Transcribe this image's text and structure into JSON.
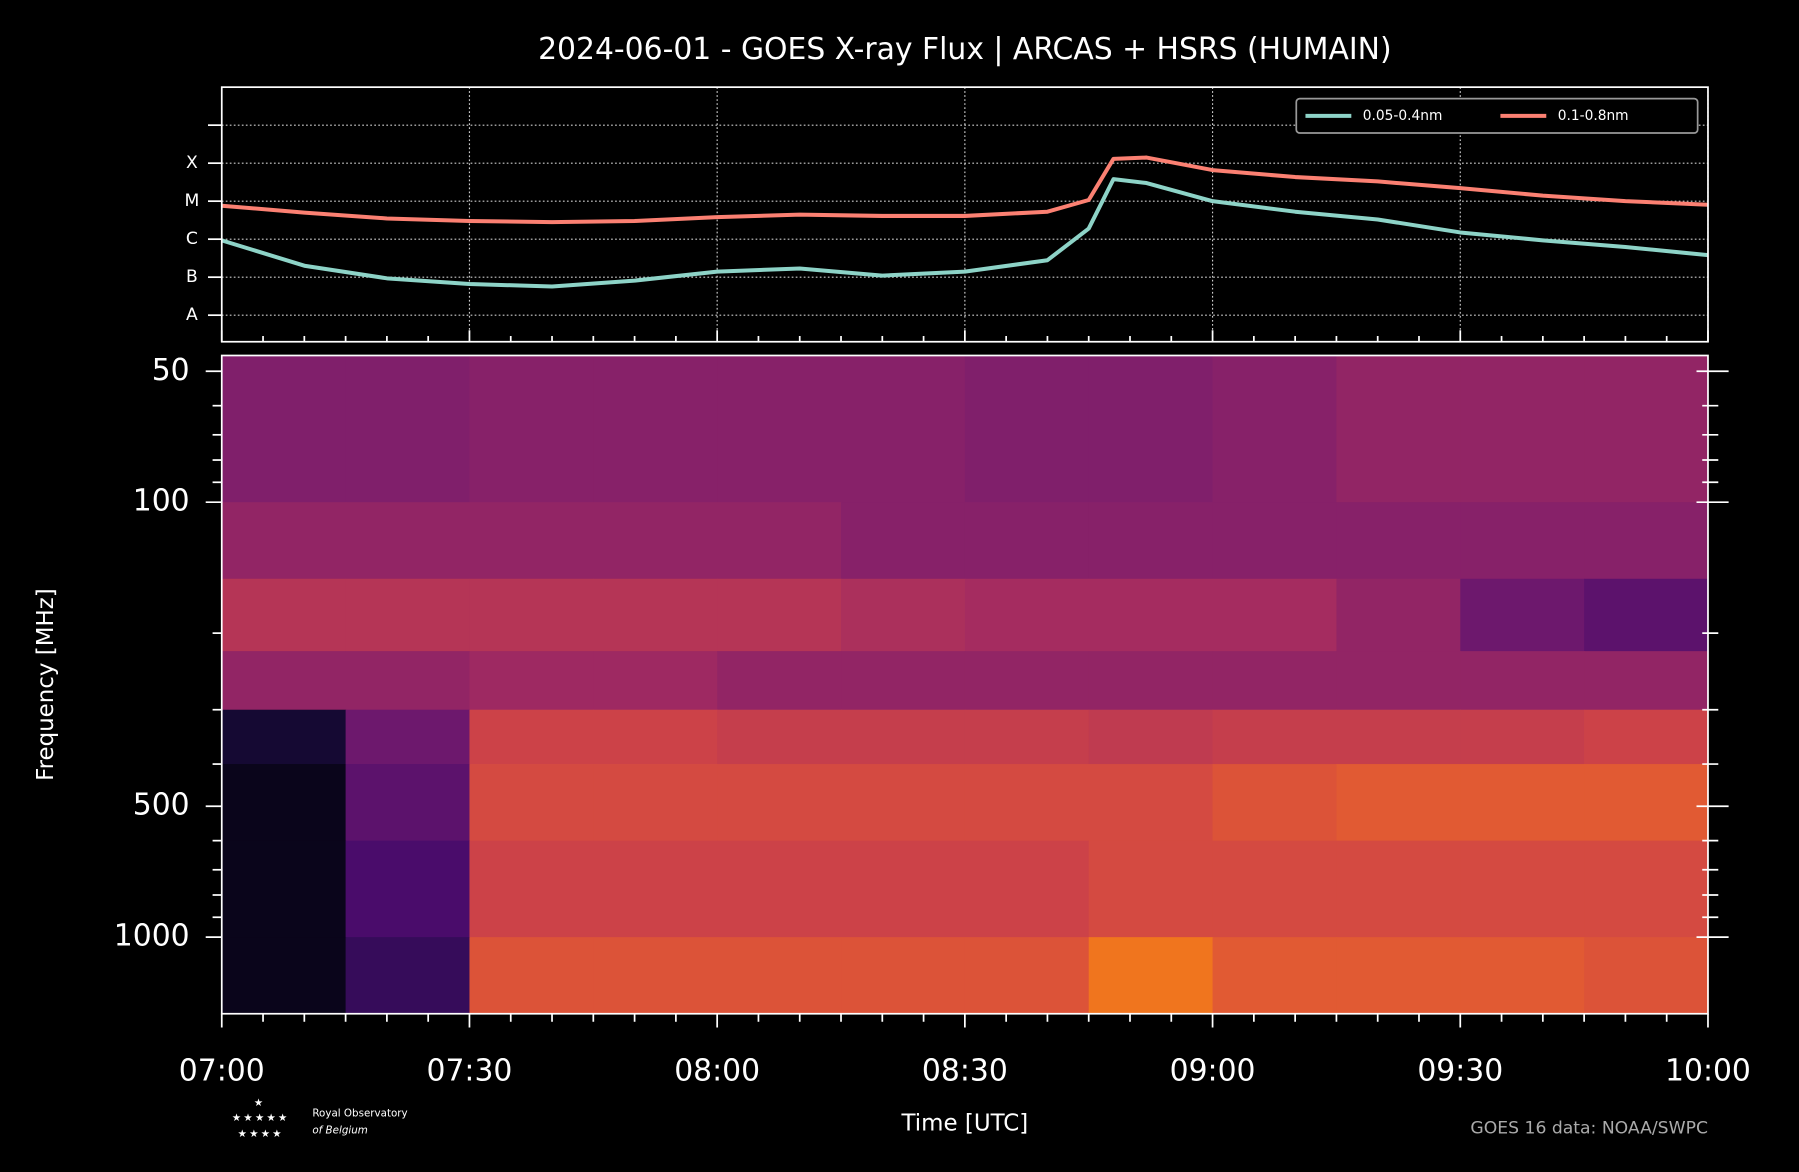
{
  "chart_data": [
    {
      "type": "line",
      "title": "2024-06-01 - GOES X-ray Flux | ARCAS + HSRS (HUMAIN)",
      "x": [
        "07:00",
        "07:10",
        "07:20",
        "07:30",
        "07:40",
        "07:50",
        "08:00",
        "08:10",
        "08:20",
        "08:30",
        "08:40",
        "08:45",
        "08:48",
        "08:52",
        "09:00",
        "09:10",
        "09:20",
        "09:30",
        "09:40",
        "09:50",
        "10:00"
      ],
      "series": [
        {
          "name": "0.05-0.4nm",
          "color": "#8dd3c7",
          "values": [
            9.3e-07,
            2e-07,
            9.3e-08,
            6.6e-08,
            5.7e-08,
            8.1e-08,
            1.4e-07,
            1.7e-07,
            1.1e-07,
            1.4e-07,
            2.8e-07,
            1.9e-06,
            3.8e-05,
            3e-05,
            1e-05,
            5.3e-06,
            3.3e-06,
            1.5e-06,
            9.3e-07,
            6.2e-07,
            3.8e-07
          ]
        },
        {
          "name": "0.1-0.8nm",
          "color": "#fb8072",
          "values": [
            7.6e-06,
            5e-06,
            3.5e-06,
            3e-06,
            2.8e-06,
            3e-06,
            3.8e-06,
            4.4e-06,
            4.1e-06,
            4.1e-06,
            5.3e-06,
            1.07e-05,
            0.00013,
            0.00014,
            6.6e-05,
            4.3e-05,
            3.3e-05,
            2.2e-05,
            1.4e-05,
            1e-05,
            8.1e-06
          ]
        }
      ],
      "xlim": [
        "07:00",
        "10:00"
      ],
      "xticks": [
        "07:00",
        "07:30",
        "08:00",
        "08:30",
        "09:00",
        "09:30",
        "10:00"
      ],
      "ylim": [
        2e-09,
        0.01
      ],
      "log_y": true,
      "yticks": [
        {
          "value": 1e-08,
          "label": "A"
        },
        {
          "value": 1e-07,
          "label": "B"
        },
        {
          "value": 1e-06,
          "label": "C"
        },
        {
          "value": 1e-05,
          "label": "M"
        },
        {
          "value": 0.0001,
          "label": "X"
        }
      ],
      "yticks_unlabeled": [
        0.001
      ],
      "grid": true,
      "legend": "upper right",
      "source": "GOES 16 data: NOAA/SWPC"
    },
    {
      "type": "heatmap",
      "xlabel": "Time [UTC]",
      "ylabel": "Frequency [MHz]",
      "xlim": [
        "07:00",
        "10:00"
      ],
      "xticks": [
        "07:00",
        "07:30",
        "08:00",
        "08:30",
        "09:00",
        "09:30",
        "10:00"
      ],
      "xticks_minor": [
        "07:05",
        "07:10",
        "07:15",
        "07:20",
        "07:25",
        "07:35",
        "07:40",
        "07:45",
        "07:50",
        "07:55",
        "08:05",
        "08:10",
        "08:15",
        "08:20",
        "08:25",
        "08:35",
        "08:40",
        "08:45",
        "08:50",
        "08:55",
        "09:05",
        "09:10",
        "09:15",
        "09:20",
        "09:25",
        "09:35",
        "09:40",
        "09:45",
        "09:50",
        "09:55"
      ],
      "ylim": [
        46,
        1500
      ],
      "log_y": true,
      "y_inverted": true,
      "yticks": [
        50,
        100,
        500,
        1000
      ],
      "yticks_minor": [
        60,
        70,
        80,
        90,
        200,
        300,
        400,
        600,
        700,
        800,
        900
      ],
      "colormap": "inferno",
      "x_edges": [
        "07:00",
        "07:15",
        "07:30",
        "07:45",
        "08:00",
        "08:15",
        "08:30",
        "08:45",
        "09:00",
        "09:15",
        "09:30",
        "09:45",
        "10:00"
      ],
      "y_edges": [
        46,
        100,
        150,
        220,
        300,
        400,
        600,
        1000,
        1500
      ],
      "values": [
        [
          0.4,
          0.4,
          0.42,
          0.42,
          0.42,
          0.42,
          0.4,
          0.4,
          0.42,
          0.45,
          0.45,
          0.45
        ],
        [
          0.45,
          0.45,
          0.45,
          0.45,
          0.45,
          0.42,
          0.42,
          0.42,
          0.42,
          0.42,
          0.42,
          0.42
        ],
        [
          0.55,
          0.55,
          0.55,
          0.55,
          0.55,
          0.52,
          0.5,
          0.5,
          0.5,
          0.45,
          0.35,
          0.3
        ],
        [
          0.45,
          0.45,
          0.48,
          0.48,
          0.45,
          0.45,
          0.45,
          0.45,
          0.45,
          0.45,
          0.45,
          0.45
        ],
        [
          0.1,
          0.35,
          0.62,
          0.62,
          0.6,
          0.6,
          0.6,
          0.58,
          0.6,
          0.6,
          0.6,
          0.62
        ],
        [
          0.05,
          0.3,
          0.65,
          0.65,
          0.65,
          0.65,
          0.65,
          0.65,
          0.68,
          0.7,
          0.7,
          0.7
        ],
        [
          0.05,
          0.25,
          0.62,
          0.62,
          0.62,
          0.62,
          0.62,
          0.65,
          0.65,
          0.65,
          0.65,
          0.65
        ],
        [
          0.05,
          0.2,
          0.68,
          0.68,
          0.68,
          0.68,
          0.68,
          0.78,
          0.7,
          0.7,
          0.7,
          0.68
        ]
      ]
    }
  ],
  "logo_text": [
    "Royal Observatory",
    "of Belgium"
  ]
}
